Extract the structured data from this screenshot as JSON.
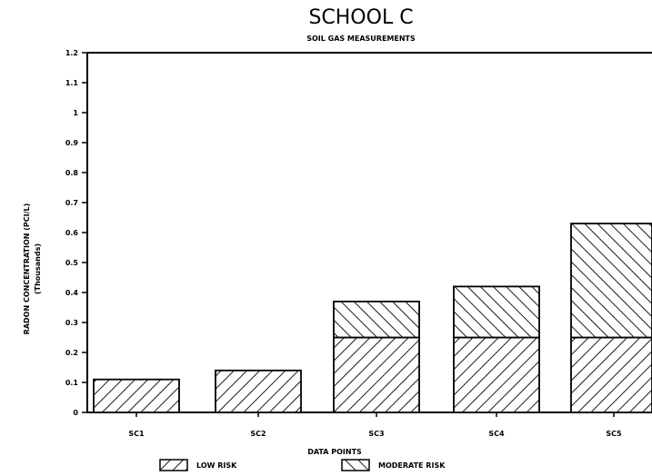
{
  "chart_data": {
    "type": "bar",
    "stacked": true,
    "title": "SCHOOL C",
    "subtitle": "SOIL GAS MEASUREMENTS",
    "xlabel": "DATA POINTS",
    "ylabel": "RADON CONCENTRATION (PCI/L)",
    "ylabel_sub": "(Thousands)",
    "ylim": [
      0,
      1.2
    ],
    "yticks": [
      "0",
      "0.1",
      "0.2",
      "0.3",
      "0.4",
      "0.5",
      "0.6",
      "0.7",
      "0.8",
      "0.9",
      "1",
      "1.1",
      "1.2"
    ],
    "categories": [
      "SC1",
      "SC2",
      "SC3",
      "SC4",
      "SC5"
    ],
    "series": [
      {
        "name": "LOW RISK",
        "values": [
          0.11,
          0.14,
          0.25,
          0.25,
          0.25
        ],
        "pattern": "hatch-forward"
      },
      {
        "name": "MODERATE RISK",
        "values": [
          0,
          0,
          0.12,
          0.17,
          0.38
        ],
        "pattern": "hatch-backward"
      }
    ],
    "legend_position": "bottom",
    "grid": false
  }
}
